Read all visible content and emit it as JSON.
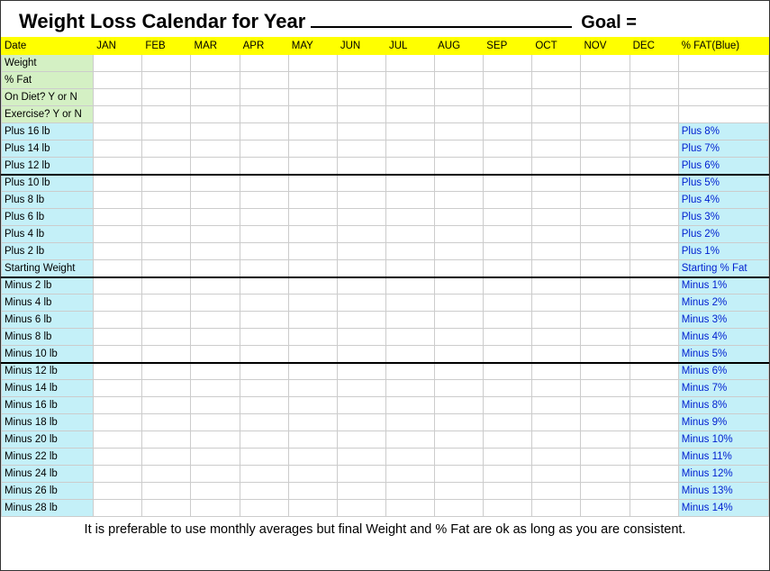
{
  "title": {
    "prefix": "Weight Loss Calendar for Year",
    "goal": "Goal ="
  },
  "header": {
    "date": "Date",
    "months": [
      "JAN",
      "FEB",
      "MAR",
      "APR",
      "MAY",
      "JUN",
      "JUL",
      "AUG",
      "SEP",
      "OCT",
      "NOV",
      "DEC"
    ],
    "fat": "% FAT(Blue)"
  },
  "greenRows": [
    "Weight",
    "% Fat",
    "On Diet? Y or N",
    "Exercise? Y or N"
  ],
  "chartRows": [
    {
      "left": "Plus 16 lb",
      "right": "Plus 8%",
      "thick": false
    },
    {
      "left": "Plus 14 lb",
      "right": "Plus 7%",
      "thick": false
    },
    {
      "left": "Plus 12 lb",
      "right": "Plus 6%",
      "thick": true
    },
    {
      "left": "Plus 10 lb",
      "right": "Plus 5%",
      "thick": false
    },
    {
      "left": "Plus 8 lb",
      "right": "Plus 4%",
      "thick": false
    },
    {
      "left": "Plus 6 lb",
      "right": "Plus 3%",
      "thick": false
    },
    {
      "left": "Plus 4 lb",
      "right": "Plus 2%",
      "thick": false
    },
    {
      "left": "Plus 2 lb",
      "right": "Plus 1%",
      "thick": false
    },
    {
      "left": "Starting Weight",
      "right": "Starting % Fat",
      "thick": true
    },
    {
      "left": "Minus 2 lb",
      "right": "Minus 1%",
      "thick": false
    },
    {
      "left": "Minus 4 lb",
      "right": "Minus 2%",
      "thick": false
    },
    {
      "left": "Minus 6 lb",
      "right": "Minus 3%",
      "thick": false
    },
    {
      "left": "Minus 8 lb",
      "right": "Minus 4%",
      "thick": false
    },
    {
      "left": "Minus 10 lb",
      "right": "Minus 5%",
      "thick": true
    },
    {
      "left": "Minus 12 lb",
      "right": "Minus 6%",
      "thick": false
    },
    {
      "left": "Minus 14 lb",
      "right": "Minus 7%",
      "thick": false
    },
    {
      "left": "Minus 16 lb",
      "right": "Minus 8%",
      "thick": false
    },
    {
      "left": "Minus 18 lb",
      "right": "Minus 9%",
      "thick": false
    },
    {
      "left": "Minus 20 lb",
      "right": "Minus 10%",
      "thick": false
    },
    {
      "left": "Minus 22 lb",
      "right": "Minus 11%",
      "thick": false
    },
    {
      "left": "Minus 24 lb",
      "right": "Minus 12%",
      "thick": false
    },
    {
      "left": "Minus 26 lb",
      "right": "Minus 13%",
      "thick": false
    },
    {
      "left": "Minus 28 lb",
      "right": "Minus 14%",
      "thick": false
    }
  ],
  "footer": "It is preferable to use monthly averages but final Weight and % Fat are ok as long as you are consistent.",
  "colors": {
    "headerBg": "#ffff00",
    "greenBg": "#d4f0c4",
    "blueBg": "#c4f0f8",
    "blueText": "#0020d0",
    "border": "#cccccc"
  }
}
